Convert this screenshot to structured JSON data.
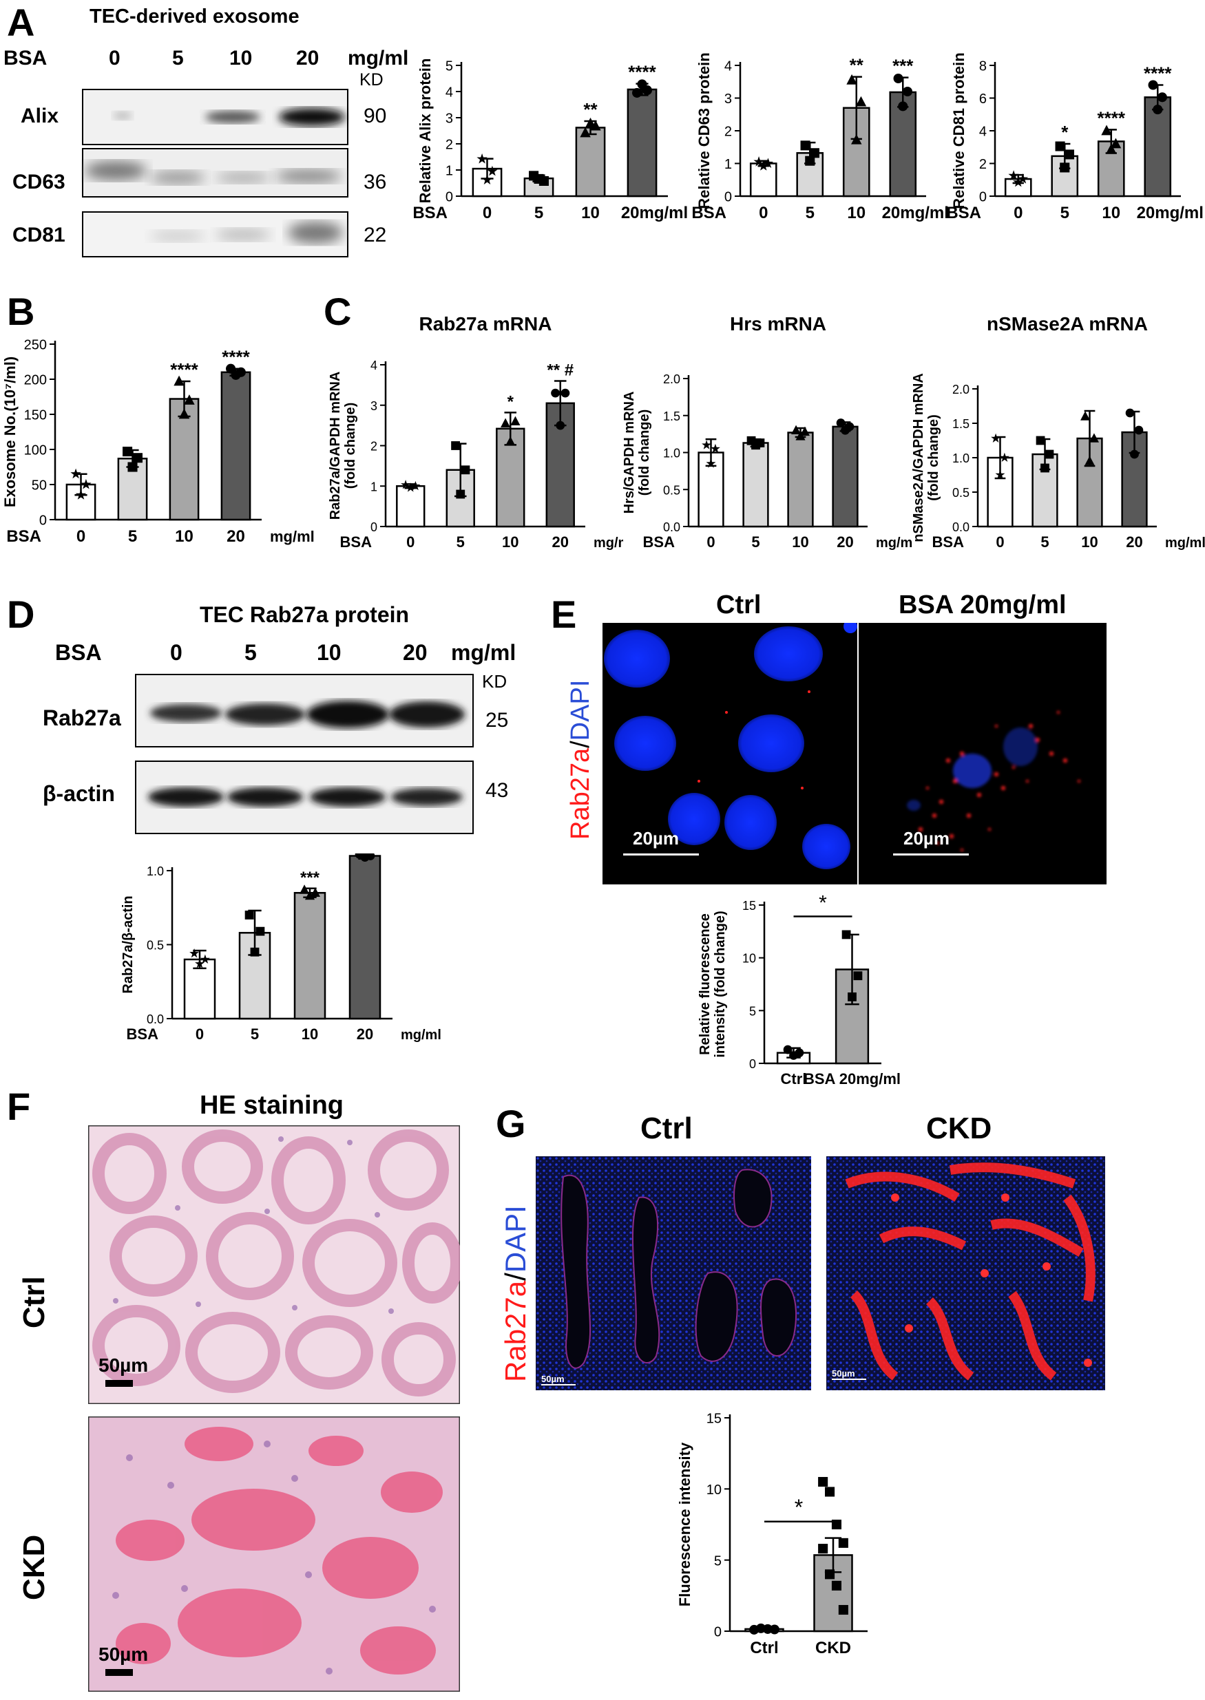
{
  "panel_labels": {
    "a": "A",
    "b": "B",
    "c": "C",
    "d": "D",
    "e": "E",
    "f": "F",
    "g": "G"
  },
  "panelA": {
    "title": "TEC-derived exosome",
    "bsa_label": "BSA",
    "lanes": [
      "0",
      "5",
      "10",
      "20"
    ],
    "unit": "mg/ml",
    "kd_label": "KD",
    "bands": [
      {
        "name": "Alix",
        "kd": "90"
      },
      {
        "name": "CD63",
        "kd": "36"
      },
      {
        "name": "CD81",
        "kd": "22"
      }
    ]
  },
  "panelD": {
    "title": "TEC Rab27a protein",
    "bsa_label": "BSA",
    "lanes": [
      "0",
      "5",
      "10",
      "20"
    ],
    "unit": "mg/ml",
    "kd_label": "KD",
    "bands": [
      {
        "name": "Rab27a",
        "kd": "25"
      },
      {
        "name": "β-actin",
        "kd": "43"
      }
    ]
  },
  "panelC": {
    "title": "C"
  },
  "panelE": {
    "ctrl_label": "Ctrl",
    "bsa_label": "BSA 20mg/ml",
    "stain_red": "Rab27a",
    "stain_sep": "/",
    "stain_blue": "DAPI",
    "scale": "20µm"
  },
  "panelF": {
    "title": "HE staining",
    "row1": "Ctrl",
    "row2": "CKD",
    "scale": "50µm"
  },
  "panelG": {
    "ctrl_label": "Ctrl",
    "ckd_label": "CKD",
    "stain_red": "Rab27a",
    "stain_sep": "/",
    "stain_blue": "DAPI",
    "scale": "50µm"
  },
  "colors": {
    "white": "#ffffff",
    "light": "#d9d9d9",
    "mid": "#a6a6a6",
    "dark": "#595959",
    "red": "#ff1a1a",
    "blue": "#2a4dd6"
  },
  "chart_data": [
    {
      "id": "alix",
      "type": "bar",
      "title": "",
      "ylabel": "Relative Alix protein",
      "xprefix": "BSA",
      "categories": [
        "0",
        "5",
        "10",
        "20mg/ml"
      ],
      "values": [
        1.05,
        0.68,
        2.62,
        4.08
      ],
      "errors": [
        0.38,
        0.12,
        0.25,
        0.22
      ],
      "ylim": [
        0,
        5
      ],
      "yticks": [
        0,
        1,
        2,
        3,
        4,
        5
      ],
      "sig": [
        "",
        "",
        "**",
        "****"
      ],
      "points": [
        [
          1.42,
          0.62,
          0.95
        ],
        [
          0.78,
          0.66,
          0.58
        ],
        [
          2.42,
          2.78,
          2.68
        ],
        [
          3.95,
          4.28,
          4.05
        ]
      ]
    },
    {
      "id": "cd63",
      "type": "bar",
      "title": "",
      "ylabel": "Relative CD63 protein",
      "xprefix": "BSA",
      "categories": [
        "0",
        "5",
        "10",
        "20mg/ml"
      ],
      "values": [
        1.0,
        1.32,
        2.7,
        3.18
      ],
      "errors": [
        0.08,
        0.32,
        0.95,
        0.45
      ],
      "ylim": [
        0,
        4
      ],
      "yticks": [
        0,
        1,
        2,
        3,
        4
      ],
      "sig": [
        "",
        "",
        "**",
        "***"
      ],
      "points": [
        [
          1.05,
          0.92,
          1.0
        ],
        [
          1.55,
          1.08,
          1.32
        ],
        [
          3.55,
          1.72,
          2.88
        ],
        [
          3.6,
          2.75,
          3.2
        ]
      ]
    },
    {
      "id": "cd81",
      "type": "bar",
      "title": "",
      "ylabel": "Relative CD81 protein",
      "xprefix": "BSA",
      "categories": [
        "0",
        "5",
        "10",
        "20mg/ml"
      ],
      "values": [
        1.05,
        2.45,
        3.35,
        6.05
      ],
      "errors": [
        0.25,
        0.75,
        0.72,
        0.75
      ],
      "ylim": [
        0,
        8
      ],
      "yticks": [
        0,
        2,
        4,
        6,
        8
      ],
      "sig": [
        "",
        "*",
        "****",
        "****"
      ],
      "points": [
        [
          1.25,
          0.85,
          1.05
        ],
        [
          3.05,
          1.75,
          2.55
        ],
        [
          4.0,
          2.85,
          3.2
        ],
        [
          6.8,
          5.3,
          6.05
        ]
      ]
    },
    {
      "id": "exosome",
      "type": "bar",
      "title": "",
      "ylabel": "Exosome No.(10⁷/ml)",
      "xprefix": "BSA",
      "xsuffix": "mg/ml",
      "categories": [
        "0",
        "5",
        "10",
        "20"
      ],
      "values": [
        50,
        87,
        172,
        210
      ],
      "errors": [
        15,
        12,
        25,
        5
      ],
      "ylim": [
        0,
        250
      ],
      "yticks": [
        0,
        50,
        100,
        150,
        200,
        250
      ],
      "sig": [
        "",
        "",
        "****",
        "****"
      ],
      "points": [
        [
          65,
          35,
          50
        ],
        [
          97,
          75,
          88
        ],
        [
          197,
          150,
          170
        ],
        [
          215,
          206,
          210
        ]
      ]
    },
    {
      "id": "rab27a_mrna",
      "type": "bar",
      "title": "Rab27a mRNA",
      "ylabel": "Rab27a/GAPDH mRNA (fold change)",
      "xprefix": "BSA",
      "xsuffix": "mg/ml",
      "categories": [
        "0",
        "5",
        "10",
        "20"
      ],
      "values": [
        1.0,
        1.4,
        2.42,
        3.05
      ],
      "errors": [
        0.05,
        0.65,
        0.4,
        0.55
      ],
      "ylim": [
        0,
        4
      ],
      "yticks": [
        0,
        1,
        2,
        3,
        4
      ],
      "sig": [
        "",
        "",
        "*",
        "** #"
      ],
      "points": [
        [
          1.03,
          0.96,
          1.0
        ],
        [
          2.0,
          0.8,
          1.4
        ],
        [
          2.55,
          2.1,
          2.6
        ],
        [
          3.3,
          2.5,
          3.3
        ]
      ]
    },
    {
      "id": "hrs_mrna",
      "type": "bar",
      "title": "Hrs mRNA",
      "ylabel": "Hrs/GAPDH mRNA (fold change)",
      "xprefix": "BSA",
      "xsuffix": "mg/ml",
      "categories": [
        "0",
        "5",
        "10",
        "20"
      ],
      "values": [
        1.0,
        1.13,
        1.27,
        1.35
      ],
      "errors": [
        0.18,
        0.05,
        0.06,
        0.06
      ],
      "ylim": [
        0,
        2.0
      ],
      "yticks": [
        0,
        0.5,
        1.0,
        1.5,
        2.0
      ],
      "sig": [
        "",
        "",
        "",
        ""
      ],
      "points": [
        [
          1.1,
          0.85,
          1.05
        ],
        [
          1.16,
          1.1,
          1.13
        ],
        [
          1.3,
          1.22,
          1.28
        ],
        [
          1.4,
          1.3,
          1.35
        ]
      ]
    },
    {
      "id": "nsmase_mrna",
      "type": "bar",
      "title": "nSMase2A mRNA",
      "ylabel": "nSMase2A/GAPDH mRNA (fold change)",
      "xprefix": "BSA",
      "xsuffix": "mg/ml",
      "categories": [
        "0",
        "5",
        "10",
        "20"
      ],
      "values": [
        1.0,
        1.05,
        1.28,
        1.37
      ],
      "errors": [
        0.3,
        0.22,
        0.4,
        0.3
      ],
      "ylim": [
        0,
        2.0
      ],
      "yticks": [
        0,
        0.5,
        1.0,
        1.5,
        2.0
      ],
      "sig": [
        "",
        "",
        "",
        ""
      ],
      "points": [
        [
          1.28,
          0.75,
          1.0
        ],
        [
          1.25,
          0.85,
          1.05
        ],
        [
          1.6,
          0.95,
          1.28
        ],
        [
          1.65,
          1.05,
          1.4
        ]
      ]
    },
    {
      "id": "rab27a_protein",
      "type": "bar",
      "title": "",
      "ylabel": "Rab27a/β-actin",
      "xprefix": "BSA",
      "xsuffix": "mg/ml",
      "categories": [
        "0",
        "5",
        "10",
        "20"
      ],
      "values": [
        0.4,
        0.58,
        0.85,
        1.1
      ],
      "errors": [
        0.06,
        0.15,
        0.03,
        0.02
      ],
      "ylim": [
        0,
        1.0
      ],
      "yticks": [
        0,
        0.5,
        1.0
      ],
      "sig": [
        "",
        "",
        "***",
        "****"
      ],
      "points": [
        [
          0.44,
          0.37,
          0.4
        ],
        [
          0.7,
          0.45,
          0.59
        ],
        [
          0.87,
          0.83,
          0.85
        ],
        [
          1.11,
          1.09,
          1.1
        ]
      ]
    },
    {
      "id": "fluor_e",
      "type": "bar",
      "title": "",
      "ylabel": "Relative fluorescence intensity (fold change)",
      "categories": [
        "Ctrl",
        "BSA 20mg/ml"
      ],
      "values": [
        1.0,
        8.9
      ],
      "errors": [
        0.45,
        3.3
      ],
      "ylim": [
        0,
        15
      ],
      "yticks": [
        0,
        5,
        10,
        15
      ],
      "sig_pair": "*",
      "points": [
        [
          1.3,
          0.75,
          1.0
        ],
        [
          12.2,
          6.3,
          8.3
        ]
      ]
    },
    {
      "id": "fluor_g",
      "type": "bar",
      "title": "",
      "ylabel": "Fluorescence intensity",
      "categories": [
        "Ctrl",
        "CKD"
      ],
      "values": [
        0.15,
        5.35
      ],
      "errors": [
        0.05,
        1.2
      ],
      "ylim": [
        0,
        15
      ],
      "yticks": [
        0,
        5,
        10,
        15
      ],
      "sig_pair": "*",
      "points": [
        [
          0.1,
          0.2,
          0.15,
          0.12
        ],
        [
          10.5,
          9.8,
          7.5,
          6.2,
          5.8,
          4.0,
          3.2,
          1.5
        ]
      ]
    }
  ]
}
